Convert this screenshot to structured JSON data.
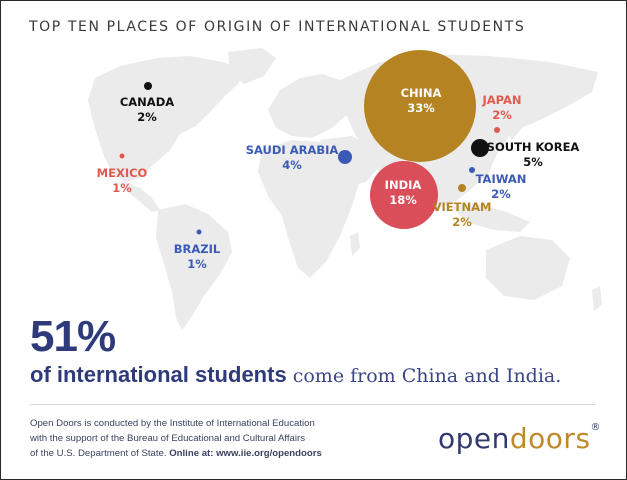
{
  "title": "TOP TEN PLACES OF ORIGIN OF INTERNATIONAL STUDENTS",
  "colors": {
    "china": "#b58322",
    "india": "#d94e58",
    "japan": "#e2584f",
    "mexico": "#e2584f",
    "korea": "#111111",
    "canada": "#111111",
    "saudi": "#3a5bb5",
    "taiwan": "#3a5bb5",
    "brazil": "#3a5bb5",
    "vietnam": "#b58322",
    "map": "#ebebeb",
    "headline": "#2f3a7b"
  },
  "countries": {
    "china": {
      "name": "CHINA",
      "pct": "33%"
    },
    "india": {
      "name": "INDIA",
      "pct": "18%"
    },
    "saudi": {
      "name": "SAUDI ARABIA",
      "pct": "4%"
    },
    "korea": {
      "name": "SOUTH KOREA",
      "pct": "5%"
    },
    "canada": {
      "name": "CANADA",
      "pct": "2%"
    },
    "japan": {
      "name": "JAPAN",
      "pct": "2%"
    },
    "taiwan": {
      "name": "TAIWAN",
      "pct": "2%"
    },
    "vietnam": {
      "name": "VIETNAM",
      "pct": "2%"
    },
    "mexico": {
      "name": "MEXICO",
      "pct": "1%"
    },
    "brazil": {
      "name": "BRAZIL",
      "pct": "1%"
    }
  },
  "headline": {
    "number": "51%",
    "bold": "of international students",
    "rest": " come from China and India."
  },
  "footer": {
    "line1": "Open Doors is conducted by the Institute of International Education",
    "line2": "with the support of the Bureau of Educational and Cultural Affairs",
    "line3": "of the U.S. Department of State. ",
    "line3_bold": "Online at: www.iie.org/opendoors"
  },
  "logo": {
    "open": "open",
    "doors": "doors",
    "reg": "®"
  }
}
